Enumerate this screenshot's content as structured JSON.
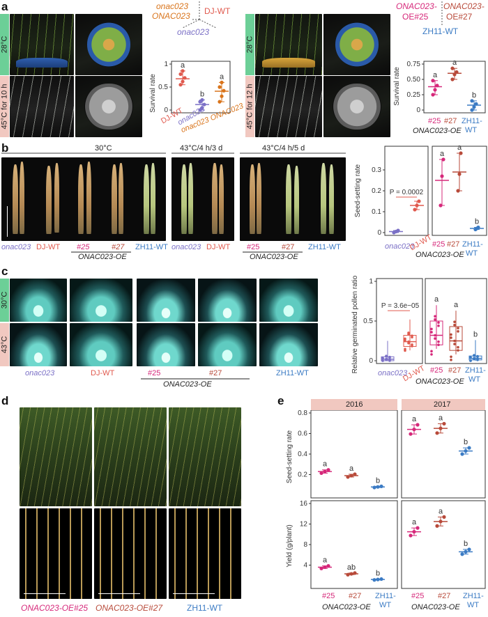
{
  "panels": {
    "a": {
      "label": "a",
      "left": {
        "temp_top": "28°C",
        "temp_bottom": "45°C for 10 h",
        "legend_geno1": "onac023",
        "legend_geno2": "ONAC023",
        "legend_wt": "DJ-WT",
        "legend_mutant": "onac023",
        "chart_ylabel": "Survival rate",
        "xt1": "DJ-WT",
        "xt2": "onac023",
        "xt3": "onac023 ONAC023"
      },
      "right": {
        "temp_top": "28°C",
        "temp_bottom": "45°C for 12 h",
        "legend_oe25": "ONAC023-",
        "legend_oe25b": "OE#25",
        "legend_oe27": "ONAC023-",
        "legend_oe27b": "OE#27",
        "legend_wt": "ZH11-WT",
        "chart_ylabel": "Survival rate",
        "xt1": "#25",
        "xt2": "#27",
        "xt3": "ZH11-",
        "xt3b": "WT",
        "xgroup": "ONAC023-OE"
      }
    },
    "b": {
      "label": "b",
      "cond1": "30°C",
      "cond2": "43°C/4 h/3 d",
      "cond3": "43°C/4 h/5 d",
      "labels1": [
        "onac023",
        "DJ-WT",
        "#25",
        "#27",
        "ZH11-WT"
      ],
      "labels2": [
        "onac023",
        "DJ-WT"
      ],
      "labels3": [
        "#25",
        "#27",
        "ZH11-WT"
      ],
      "oe_group": "ONAC023-OE",
      "chart_ylabel": "Seed-setting rate",
      "pval": "P = 0.0002",
      "xleft": [
        "onac023",
        "DJ-WT"
      ],
      "xright": [
        "#25",
        "#27",
        "ZH11-",
        "WT"
      ],
      "xgroup": "ONAC023-OE"
    },
    "c": {
      "label": "c",
      "temp_top": "30°C",
      "temp_bottom": "43°C",
      "labels": [
        "onac023",
        "DJ-WT",
        "#25",
        "#27",
        "ZH11-WT"
      ],
      "oe_group": "ONAC023-OE",
      "chart_ylabel": "Relative germinated pollen ratio",
      "pval": "P = 3.6e−05",
      "xleft": [
        "onac023",
        "DJ-WT"
      ],
      "xright": [
        "#25",
        "#27",
        "ZH11-",
        "WT"
      ],
      "xgroup": "ONAC023-OE"
    },
    "d": {
      "label": "d",
      "labels": [
        "ONAC023-OE#25",
        "ONAC023-OE#27",
        "ZH11-WT"
      ]
    },
    "e": {
      "label": "e",
      "year1": "2016",
      "year2": "2017",
      "ylabel_top": "Seed-setting rate",
      "ylabel_bottom": "Yield (g/plant)",
      "xticks": [
        "#25",
        "#27",
        "ZH11-",
        "WT"
      ],
      "xgroup": "ONAC023-OE"
    }
  },
  "colors": {
    "onac023": "#7b70c6",
    "dj_wt": "#e05a4e",
    "complement": "#d9741b",
    "oe25": "#d6287a",
    "oe27": "#b84a3a",
    "zh11": "#3b7bc4",
    "green_bar": "#6ccf97",
    "pink_bar": "#f1c8c0"
  },
  "chart_data": [
    {
      "id": "a-left",
      "type": "scatter",
      "ylabel": "Survival rate",
      "ylim": [
        0,
        1.0
      ],
      "yticks": [
        0,
        0.5,
        1.0
      ],
      "categories": [
        "DJ-WT",
        "onac023",
        "onac023 ONAC023"
      ],
      "means": [
        0.68,
        0.12,
        0.41
      ],
      "letters": [
        "a",
        "b",
        "a"
      ],
      "points": [
        [
          0.55,
          0.62,
          0.7,
          0.78,
          0.85
        ],
        [
          0.0,
          0.05,
          0.12,
          0.18,
          0.22
        ],
        [
          0.18,
          0.3,
          0.42,
          0.5,
          0.6
        ]
      ]
    },
    {
      "id": "a-right",
      "type": "scatter",
      "ylabel": "Survival rate",
      "ylim": [
        0,
        0.75
      ],
      "yticks": [
        0,
        0.25,
        0.5,
        0.75
      ],
      "categories": [
        "#25",
        "#27",
        "ZH11-WT"
      ],
      "means": [
        0.38,
        0.6,
        0.08
      ],
      "letters": [
        "a",
        "a",
        "b"
      ],
      "points": [
        [
          0.25,
          0.33,
          0.4,
          0.48
        ],
        [
          0.5,
          0.58,
          0.62,
          0.68
        ],
        [
          0.0,
          0.05,
          0.1,
          0.15
        ]
      ]
    },
    {
      "id": "b",
      "type": "scatter",
      "ylabel": "Seed-setting rate",
      "ylim": [
        0,
        0.4
      ],
      "yticks": [
        0,
        0.1,
        0.2,
        0.3
      ],
      "categories_left": [
        "onac023",
        "DJ-WT"
      ],
      "means_left": [
        0.005,
        0.13
      ],
      "points_left": [
        [
          0.0,
          0.005,
          0.01
        ],
        [
          0.11,
          0.13,
          0.15
        ]
      ],
      "categories_right": [
        "#25",
        "#27",
        "ZH11-WT"
      ],
      "means_right": [
        0.25,
        0.29,
        0.02
      ],
      "letters_right": [
        "a",
        "a",
        "b"
      ],
      "points_right": [
        [
          0.13,
          0.27,
          0.35
        ],
        [
          0.2,
          0.28,
          0.38
        ],
        [
          0.015,
          0.02,
          0.025
        ]
      ]
    },
    {
      "id": "c",
      "type": "box",
      "ylabel": "Relative germinated pollen ratio",
      "ylim": [
        0,
        1.0
      ],
      "yticks": [
        0,
        0.5,
        1.0
      ],
      "categories_left": [
        "onac023",
        "DJ-WT"
      ],
      "medians_left": [
        0.02,
        0.24
      ],
      "categories_right": [
        "#25",
        "#27",
        "ZH11-WT"
      ],
      "medians_right": [
        0.32,
        0.25,
        0.03
      ],
      "letters_right": [
        "a",
        "a",
        "b"
      ]
    },
    {
      "id": "e-seed",
      "type": "scatter",
      "ylabel": "Seed-setting rate",
      "ylim": [
        0,
        0.8
      ],
      "yticks": [
        0.2,
        0.4,
        0.6,
        0.8
      ],
      "categories": [
        "#25",
        "#27",
        "ZH11-WT"
      ],
      "series": [
        {
          "year": "2016",
          "means": [
            0.23,
            0.19,
            0.08
          ],
          "letters": [
            "a",
            "a",
            "b"
          ]
        },
        {
          "year": "2017",
          "means": [
            0.64,
            0.65,
            0.43
          ],
          "letters": [
            "a",
            "a",
            "b"
          ]
        }
      ]
    },
    {
      "id": "e-yield",
      "type": "scatter",
      "ylabel": "Yield (g/plant)",
      "ylim": [
        0,
        16
      ],
      "yticks": [
        4,
        8,
        12,
        16
      ],
      "categories": [
        "#25",
        "#27",
        "ZH11-WT"
      ],
      "series": [
        {
          "year": "2016",
          "means": [
            3.6,
            2.3,
            1.2
          ],
          "letters": [
            "a",
            "ab",
            "b"
          ]
        },
        {
          "year": "2017",
          "means": [
            10.5,
            12.5,
            6.6
          ],
          "letters": [
            "a",
            "a",
            "b"
          ]
        }
      ]
    }
  ]
}
